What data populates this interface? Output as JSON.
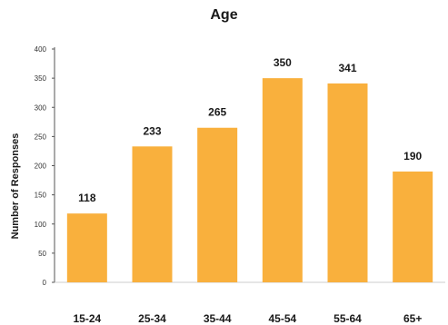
{
  "chart_data": {
    "type": "bar",
    "title": "Age",
    "xlabel": "",
    "ylabel": "Number of Responses",
    "categories": [
      "15-24",
      "25-34",
      "35-44",
      "45-54",
      "55-64",
      "65+"
    ],
    "values": [
      118,
      233,
      265,
      350,
      341,
      190
    ],
    "data_labels": [
      "118",
      "233",
      "265",
      "350",
      "341",
      "190"
    ],
    "ylim": [
      0,
      400
    ],
    "yticks": [
      0,
      50,
      100,
      150,
      200,
      250,
      300,
      350,
      400
    ],
    "grid": false,
    "legend": "none",
    "bar_color": "#F9B03D"
  }
}
